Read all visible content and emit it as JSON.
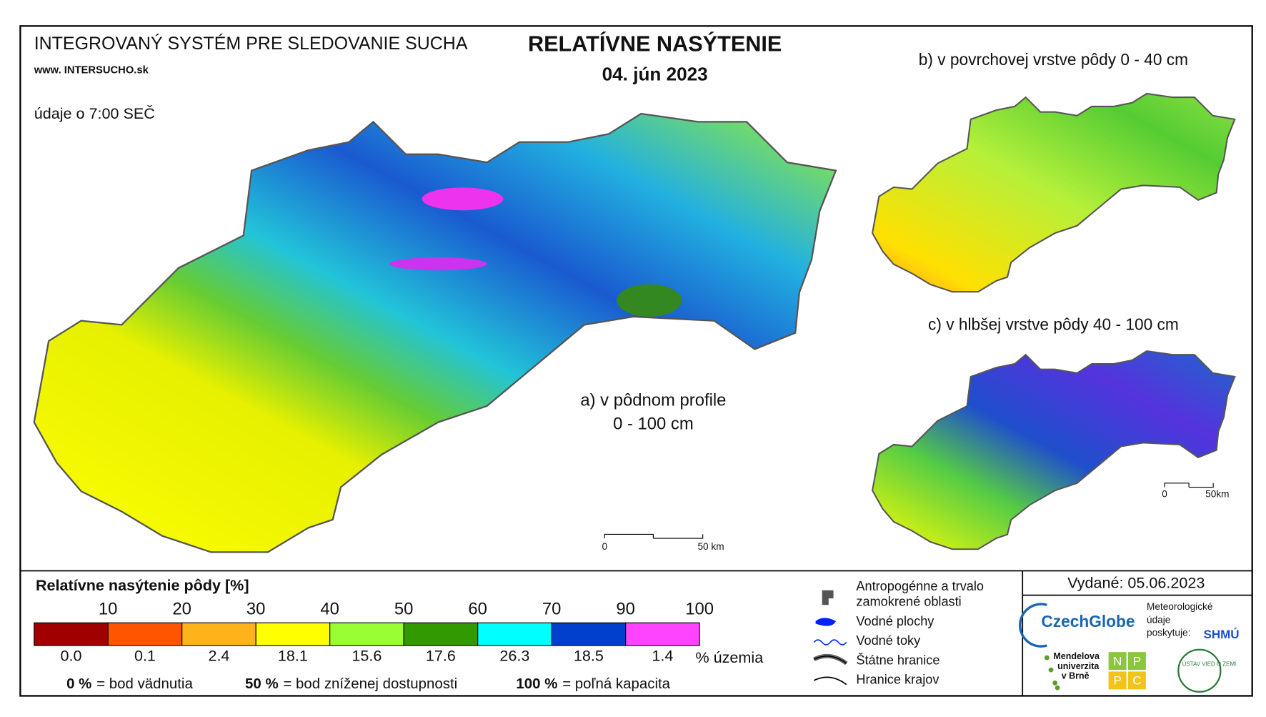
{
  "header": {
    "system_title": "INTEGROVANÝ SYSTÉM PRE SLEDOVANIE SUCHA",
    "website": "www. INTERSUCHO.sk",
    "time_note": "údaje o 7:00 SEČ"
  },
  "title": "RELATÍVNE NASÝTENIE",
  "date": "04. jún 2023",
  "maps": [
    {
      "label": "a) v pôdnom profile",
      "sublabel": "0 - 100 cm"
    },
    {
      "label": "b) v povrchovej vrstve pôdy 0 - 40 cm"
    },
    {
      "label": "c) v hlbšej vrstve pôdy 40 - 100 cm"
    }
  ],
  "scale_bars": {
    "main": {
      "start": "0",
      "end": "50 km"
    },
    "small": {
      "start": "0",
      "end": "50km"
    }
  },
  "legend": {
    "title": "Relatívne nasýtenie pôdy [%]",
    "thresholds": [
      10,
      20,
      30,
      40,
      50,
      60,
      70,
      90,
      100
    ],
    "classes": [
      {
        "color": "#a00000",
        "share": "0.0"
      },
      {
        "color": "#ff5500",
        "share": "0.1"
      },
      {
        "color": "#ffb31a",
        "share": "2.4"
      },
      {
        "color": "#ffff00",
        "share": "18.1"
      },
      {
        "color": "#99ff33",
        "share": "15.6"
      },
      {
        "color": "#339900",
        "share": "17.6"
      },
      {
        "color": "#00ffff",
        "share": "26.3"
      },
      {
        "color": "#0040cc",
        "share": "18.5"
      },
      {
        "color": "#ff44ff",
        "share": "1.4"
      }
    ],
    "unit_label": "% územia",
    "notes": [
      {
        "key": "0 %",
        "text": "= bod vädnutia"
      },
      {
        "key": "50 %",
        "text": "= bod zníženej dostupnosti"
      },
      {
        "key": "100 %",
        "text": "= poľná kapacita"
      }
    ]
  },
  "symbols": [
    "Antropogénne a trvalo",
    "zamokrené oblasti",
    "Vodné plochy",
    "Vodné toky",
    "Štátne hranice",
    "Hranice krajov"
  ],
  "issued": "Vydané: 05.06.2023",
  "providers": {
    "czechglobe": "CzechGlobe",
    "meteo": [
      "Meteorologické",
      "údaje",
      "poskytuje:"
    ],
    "shmu": "SHMÚ",
    "mendel": [
      "Mendelova",
      "univerzita",
      "v Brně"
    ],
    "nppc": [
      "N",
      "P",
      "P",
      "C"
    ],
    "uvz": "ÚSTAV VIED O ZEMI"
  }
}
